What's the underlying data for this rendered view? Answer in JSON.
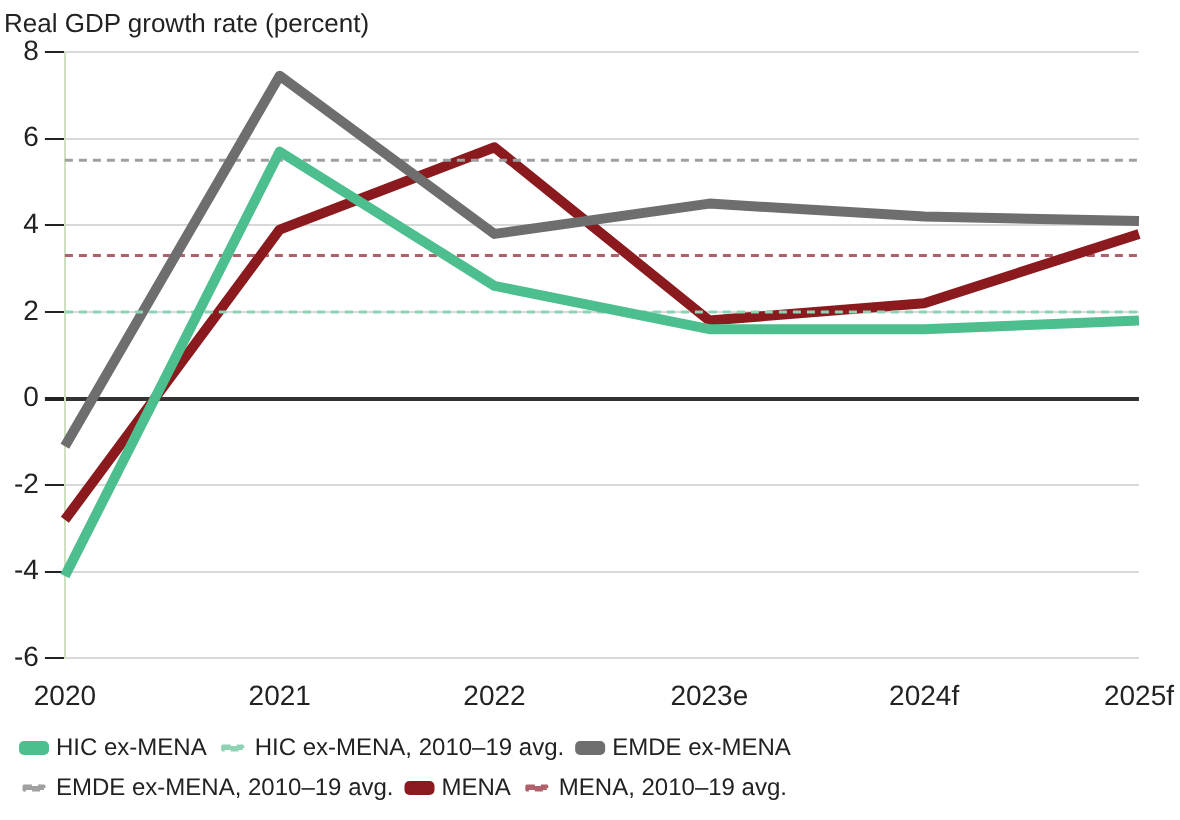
{
  "chart_data": {
    "type": "line",
    "ylabel": "Real GDP growth rate (percent)",
    "categories": [
      "2020",
      "2021",
      "2022",
      "2023e",
      "2024f",
      "2025f"
    ],
    "series": [
      {
        "name": "HIC ex-MENA",
        "color": "#4dbf8f",
        "values": [
          -4.1,
          5.7,
          2.6,
          1.6,
          1.6,
          1.8
        ]
      },
      {
        "name": "HIC ex-MENA, 2010–19 avg.",
        "color": "#8fd3b5",
        "line_style": "dashed",
        "values": [
          2.0,
          2.0,
          2.0,
          2.0,
          2.0,
          2.0
        ]
      },
      {
        "name": "EMDE ex-MENA",
        "color": "#6e6e6e",
        "values": [
          -1.1,
          7.45,
          3.8,
          4.5,
          4.2,
          4.1
        ]
      },
      {
        "name": "EMDE ex-MENA, 2010–19 avg.",
        "color": "#a0a0a0",
        "line_style": "dashed",
        "values": [
          5.5,
          5.5,
          5.5,
          5.5,
          5.5,
          5.5
        ]
      },
      {
        "name": "MENA",
        "color": "#8b1a1f",
        "values": [
          -2.8,
          3.9,
          5.8,
          1.8,
          2.2,
          3.8
        ]
      },
      {
        "name": "MENA, 2010–19 avg.",
        "color": "#b0606a",
        "line_style": "dashed",
        "values": [
          3.3,
          3.3,
          3.3,
          3.3,
          3.3,
          3.3
        ]
      }
    ],
    "ylim": [
      -6,
      8
    ],
    "yticks": [
      -6,
      -4,
      -2,
      0,
      2,
      4,
      6,
      8
    ],
    "grid": "y",
    "legend": "bottom",
    "marker": "none"
  }
}
